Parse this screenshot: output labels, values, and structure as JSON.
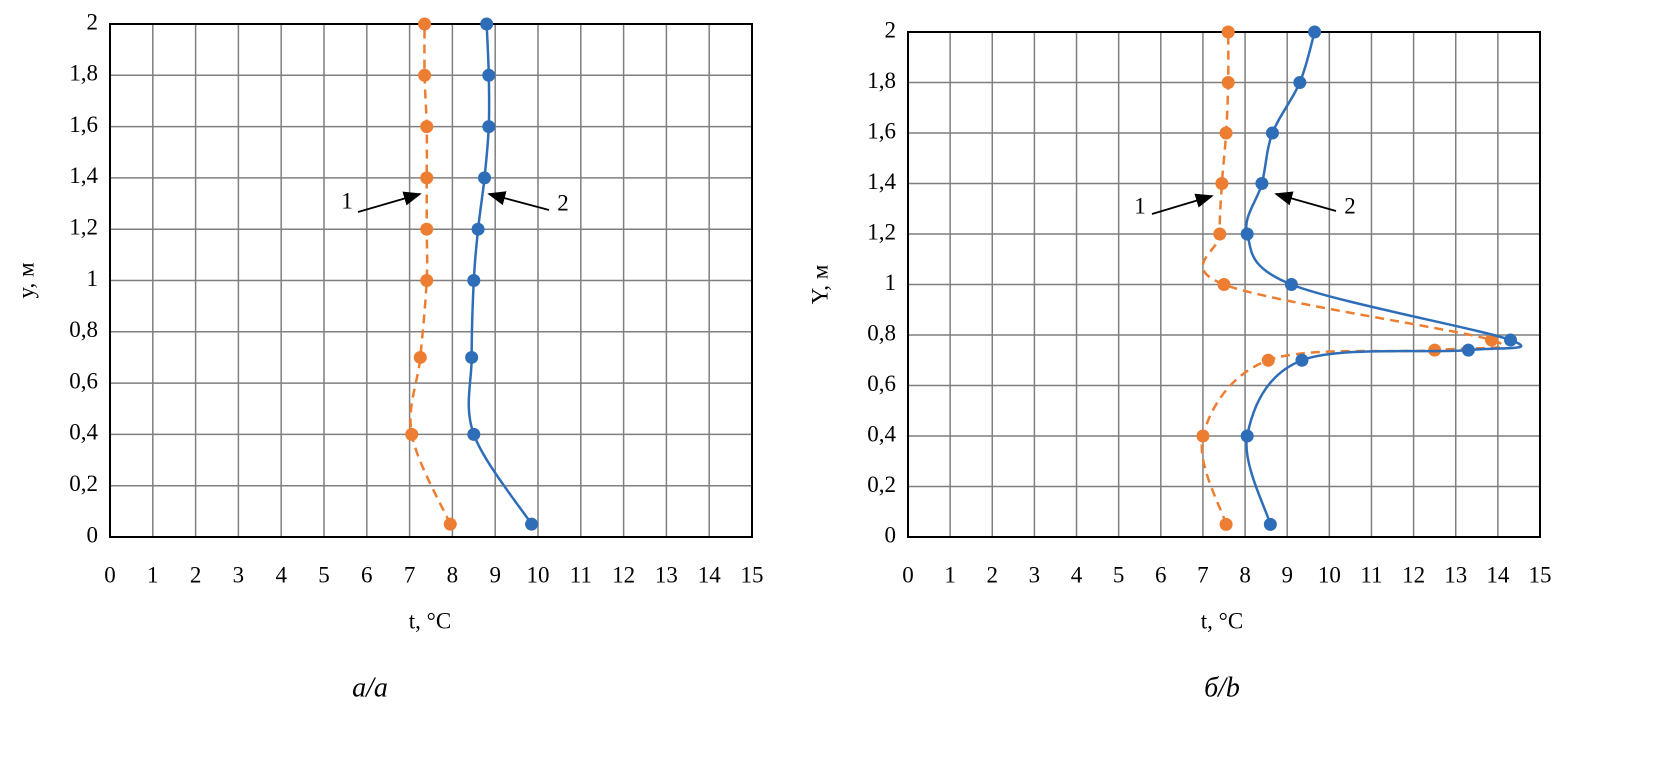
{
  "chart_data": [
    {
      "type": "line",
      "xlabel": "t, °C",
      "ylabel": "y, м",
      "caption": "а/a",
      "xlim": [
        0,
        15
      ],
      "xticks": [
        0,
        1,
        2,
        3,
        4,
        5,
        6,
        7,
        8,
        9,
        10,
        11,
        12,
        13,
        14,
        15
      ],
      "ylim": [
        0,
        2
      ],
      "yticks": [
        0,
        {
          "value": 0.2,
          "label": "0,2"
        },
        {
          "value": 0.4,
          "label": "0,4"
        },
        {
          "value": 0.6,
          "label": "0,6"
        },
        {
          "value": 0.8,
          "label": "0,8"
        },
        1,
        {
          "value": 1.2,
          "label": "1,2"
        },
        {
          "value": 1.4,
          "label": "1,4"
        },
        {
          "value": 1.6,
          "label": "1,6"
        },
        {
          "value": 1.8,
          "label": "1,8"
        },
        2
      ],
      "grid": true,
      "series": [
        {
          "color": "#ed7d31",
          "dashed": true,
          "x": [
            7.95,
            7.05,
            7.25,
            7.4,
            7.4,
            7.4,
            7.4,
            7.35,
            7.35
          ],
          "y": [
            0.05,
            0.4,
            0.7,
            1.0,
            1.2,
            1.4,
            1.6,
            1.8,
            2.0
          ]
        },
        {
          "color": "#2e6eb8",
          "dashed": false,
          "x": [
            9.85,
            8.5,
            8.45,
            8.5,
            8.6,
            8.75,
            8.85,
            8.85,
            8.8
          ],
          "y": [
            0.05,
            0.4,
            0.7,
            1.0,
            1.2,
            1.4,
            1.6,
            1.8,
            2.0
          ]
        }
      ],
      "annotations": [
        "1",
        "2"
      ]
    },
    {
      "type": "line",
      "xlabel": "t, °C",
      "ylabel": "Y, м",
      "caption": "б/b",
      "xlim": [
        0,
        15
      ],
      "xticks": [
        0,
        1,
        2,
        3,
        4,
        5,
        6,
        7,
        8,
        9,
        10,
        11,
        12,
        13,
        14,
        15
      ],
      "ylim": [
        0,
        2
      ],
      "yticks": [
        0,
        {
          "value": 0.2,
          "label": "0,2"
        },
        {
          "value": 0.4,
          "label": "0,4"
        },
        {
          "value": 0.6,
          "label": "0,6"
        },
        {
          "value": 0.8,
          "label": "0,8"
        },
        1,
        {
          "value": 1.2,
          "label": "1,2"
        },
        {
          "value": 1.4,
          "label": "1,4"
        },
        {
          "value": 1.6,
          "label": "1,6"
        },
        {
          "value": 1.8,
          "label": "1,8"
        },
        2
      ],
      "grid": true,
      "series": [
        {
          "color": "#ed7d31",
          "dashed": true,
          "x": [
            7.55,
            7.0,
            8.55,
            12.5,
            13.85,
            7.5,
            7.4,
            7.45,
            7.55,
            7.6,
            7.6
          ],
          "y": [
            0.05,
            0.4,
            0.7,
            0.74,
            0.78,
            1.0,
            1.2,
            1.4,
            1.6,
            1.8,
            2.0
          ]
        },
        {
          "color": "#2e6eb8",
          "dashed": false,
          "x": [
            8.6,
            8.05,
            9.35,
            13.3,
            14.3,
            9.1,
            8.05,
            8.4,
            8.65,
            9.3,
            9.65
          ],
          "y": [
            0.05,
            0.4,
            0.7,
            0.74,
            0.78,
            1.0,
            1.2,
            1.4,
            1.6,
            1.8,
            2.0
          ]
        }
      ],
      "annotations": [
        "1",
        "2"
      ]
    }
  ]
}
